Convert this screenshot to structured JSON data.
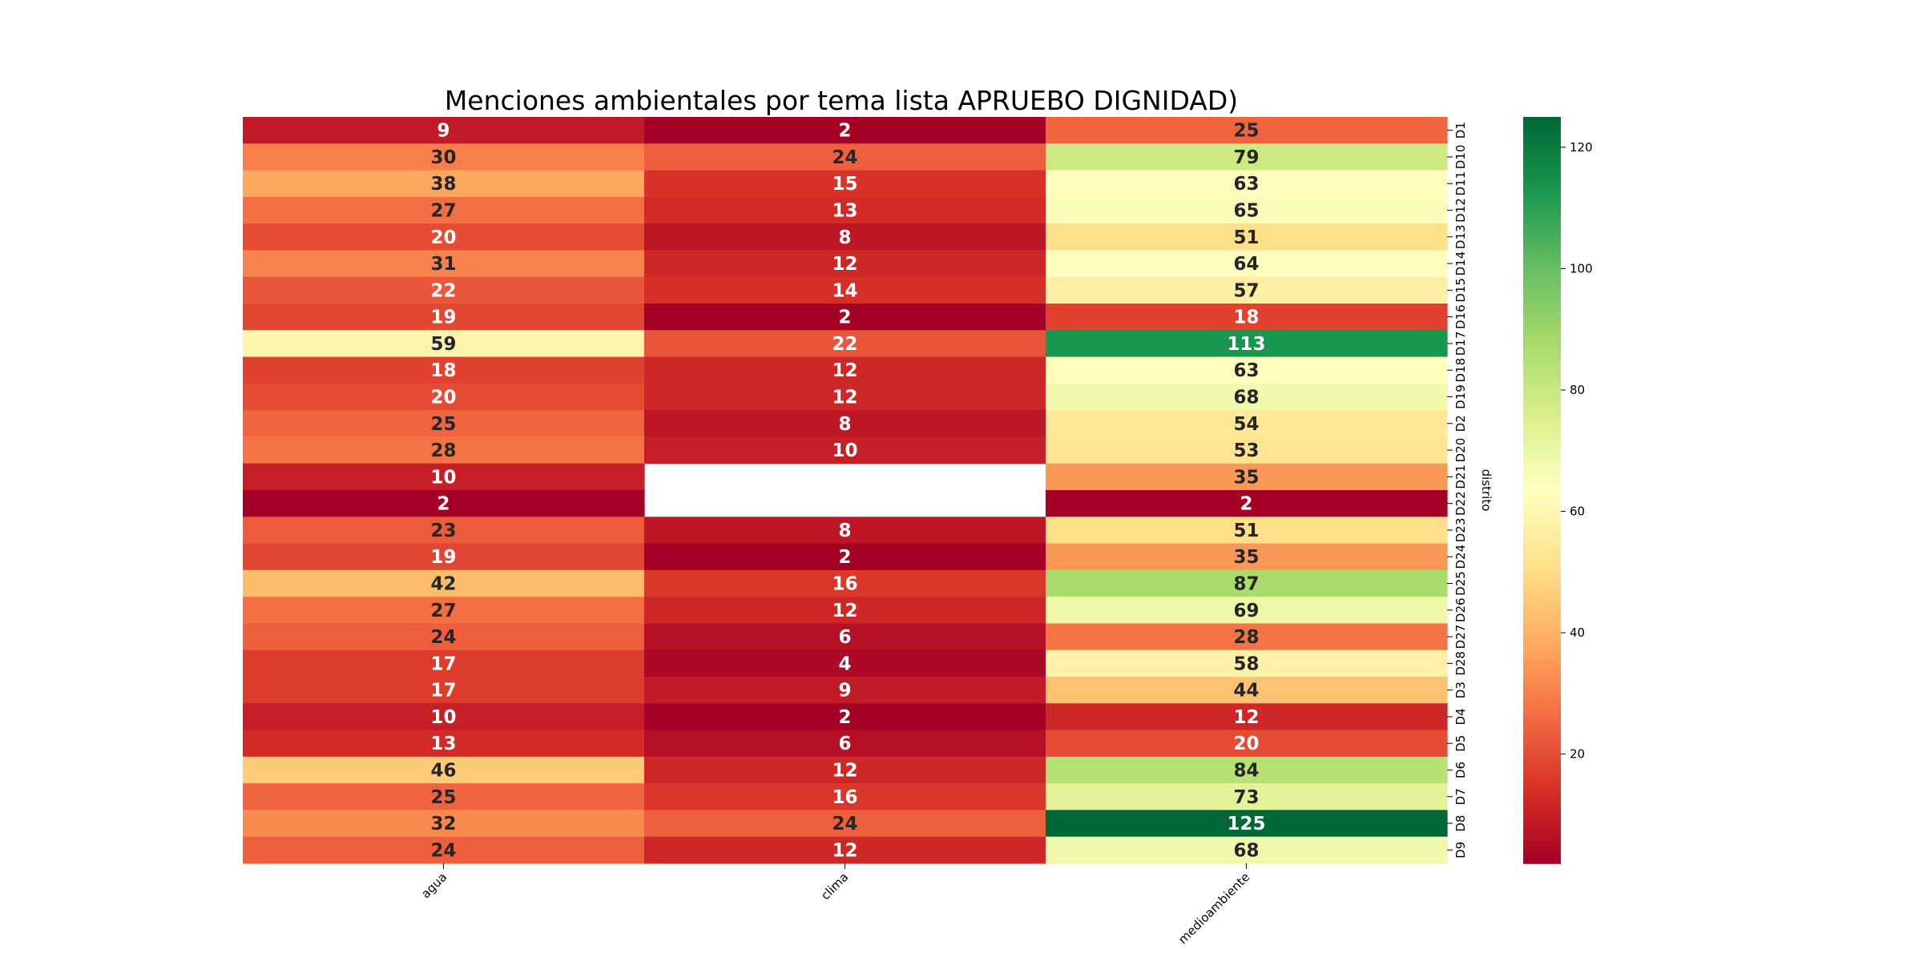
{
  "chart_data": {
    "type": "heatmap",
    "title": "Menciones ambientales por tema lista APRUEBO DIGNIDAD)",
    "xlabel": "",
    "ylabel": "distrito",
    "columns": [
      "agua",
      "clima",
      "medioambiente"
    ],
    "rows": [
      "D1",
      "D10",
      "D11",
      "D12",
      "D13",
      "D14",
      "D15",
      "D16",
      "D17",
      "D18",
      "D19",
      "D2",
      "D20",
      "D21",
      "D22",
      "D23",
      "D24",
      "D25",
      "D26",
      "D27",
      "D28",
      "D3",
      "D4",
      "D5",
      "D6",
      "D7",
      "D8",
      "D9"
    ],
    "values": [
      [
        9,
        2,
        25
      ],
      [
        30,
        24,
        79
      ],
      [
        38,
        15,
        63
      ],
      [
        27,
        13,
        65
      ],
      [
        20,
        8,
        51
      ],
      [
        31,
        12,
        64
      ],
      [
        22,
        14,
        57
      ],
      [
        19,
        2,
        18
      ],
      [
        59,
        22,
        113
      ],
      [
        18,
        12,
        63
      ],
      [
        20,
        12,
        68
      ],
      [
        25,
        8,
        54
      ],
      [
        28,
        10,
        53
      ],
      [
        10,
        null,
        35
      ],
      [
        2,
        null,
        2
      ],
      [
        23,
        8,
        51
      ],
      [
        19,
        2,
        35
      ],
      [
        42,
        16,
        87
      ],
      [
        27,
        12,
        69
      ],
      [
        24,
        6,
        28
      ],
      [
        17,
        4,
        58
      ],
      [
        17,
        9,
        44
      ],
      [
        10,
        2,
        12
      ],
      [
        13,
        6,
        20
      ],
      [
        46,
        12,
        84
      ],
      [
        25,
        16,
        73
      ],
      [
        32,
        24,
        125
      ],
      [
        24,
        12,
        68
      ]
    ],
    "colormap": "RdYlGn",
    "vmin": 2,
    "vmax": 125,
    "colorbar_ticks": [
      20,
      40,
      60,
      80,
      100,
      120
    ],
    "annotate": true,
    "missing_cells": "blank"
  }
}
